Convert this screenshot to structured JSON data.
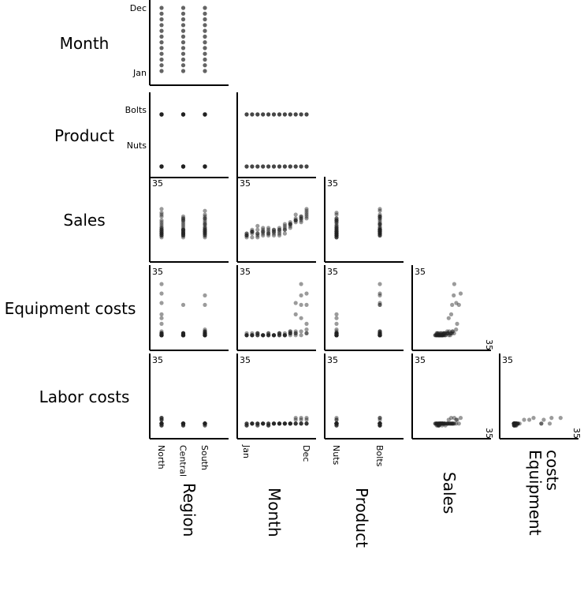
{
  "chart_data": {
    "type": "scatter",
    "kind": "scatter-plot-matrix (lower triangle)",
    "variables": {
      "Region": {
        "label": "Region",
        "type": "categorical",
        "levels": [
          "North",
          "Central",
          "South"
        ]
      },
      "Month": {
        "label": "Month",
        "type": "ordinal",
        "first_label": "Jan",
        "last_label": "Dec",
        "levels": [
          "Jan",
          "Feb",
          "Mar",
          "Apr",
          "May",
          "Jun",
          "Jul",
          "Aug",
          "Sep",
          "Oct",
          "Nov",
          "Dec"
        ]
      },
      "Product": {
        "label": "Product",
        "type": "categorical",
        "levels": [
          "Nuts",
          "Bolts"
        ]
      },
      "Sales": {
        "label": "Sales",
        "type": "numeric",
        "range": [
          0,
          35
        ],
        "max_label": "35"
      },
      "EquipmentCosts": {
        "label": "Equipment costs",
        "type": "numeric",
        "range": [
          0,
          35
        ],
        "max_label": "35"
      },
      "LaborCosts": {
        "label": "Labor costs",
        "type": "numeric",
        "range": [
          0,
          35
        ],
        "max_label": "35"
      }
    },
    "row_order": [
      "Month",
      "Product",
      "Sales",
      "EquipmentCosts",
      "LaborCosts"
    ],
    "column_order": [
      "Region",
      "Month",
      "Product",
      "Sales",
      "EquipmentCosts"
    ],
    "records": [
      [
        "North",
        "Jan",
        "Nuts",
        9,
        3,
        3
      ],
      [
        "North",
        "Jan",
        "Bolts",
        10,
        3,
        2
      ],
      [
        "North",
        "Feb",
        "Nuts",
        11,
        4,
        3
      ],
      [
        "North",
        "Feb",
        "Bolts",
        12,
        3,
        3
      ],
      [
        "North",
        "Mar",
        "Nuts",
        8,
        3,
        3
      ],
      [
        "North",
        "Mar",
        "Bolts",
        14,
        4,
        2
      ],
      [
        "North",
        "Apr",
        "Nuts",
        10,
        3,
        3
      ],
      [
        "North",
        "Apr",
        "Bolts",
        13,
        3,
        3
      ],
      [
        "North",
        "May",
        "Nuts",
        9,
        4,
        2
      ],
      [
        "North",
        "May",
        "Bolts",
        11,
        3,
        3
      ],
      [
        "North",
        "Jun",
        "Nuts",
        12,
        3,
        3
      ],
      [
        "North",
        "Jun",
        "Bolts",
        10,
        3,
        3
      ],
      [
        "North",
        "Jul",
        "Nuts",
        11,
        4,
        3
      ],
      [
        "North",
        "Jul",
        "Bolts",
        9,
        3,
        3
      ],
      [
        "North",
        "Aug",
        "Nuts",
        10,
        3,
        3
      ],
      [
        "North",
        "Aug",
        "Bolts",
        12,
        3,
        3
      ],
      [
        "North",
        "Sep",
        "Nuts",
        13,
        4,
        3
      ],
      [
        "North",
        "Sep",
        "Bolts",
        15,
        5,
        3
      ],
      [
        "North",
        "Oct",
        "Nuts",
        17,
        14,
        6
      ],
      [
        "North",
        "Oct",
        "Bolts",
        20,
        20,
        5
      ],
      [
        "North",
        "Nov",
        "Nuts",
        16,
        12,
        5
      ],
      [
        "North",
        "Nov",
        "Bolts",
        19,
        30,
        6
      ],
      [
        "North",
        "Dec",
        "Nuts",
        21,
        9,
        5
      ],
      [
        "North",
        "Dec",
        "Bolts",
        23,
        25,
        6
      ],
      [
        "Central",
        "Jan",
        "Nuts",
        9,
        3,
        3
      ],
      [
        "Central",
        "Jan",
        "Bolts",
        10,
        3,
        2
      ],
      [
        "Central",
        "Feb",
        "Nuts",
        8,
        3,
        3
      ],
      [
        "Central",
        "Feb",
        "Bolts",
        11,
        3,
        3
      ],
      [
        "Central",
        "Mar",
        "Nuts",
        10,
        4,
        3
      ],
      [
        "Central",
        "Mar",
        "Bolts",
        12,
        3,
        2
      ],
      [
        "Central",
        "Apr",
        "Nuts",
        9,
        3,
        3
      ],
      [
        "Central",
        "Apr",
        "Bolts",
        11,
        3,
        3
      ],
      [
        "Central",
        "May",
        "Nuts",
        10,
        3,
        2
      ],
      [
        "Central",
        "May",
        "Bolts",
        12,
        3,
        3
      ],
      [
        "Central",
        "Jun",
        "Nuts",
        11,
        3,
        3
      ],
      [
        "Central",
        "Jun",
        "Bolts",
        9,
        3,
        3
      ],
      [
        "Central",
        "Jul",
        "Nuts",
        12,
        4,
        3
      ],
      [
        "Central",
        "Jul",
        "Bolts",
        10,
        3,
        3
      ],
      [
        "Central",
        "Aug",
        "Nuts",
        13,
        3,
        3
      ],
      [
        "Central",
        "Aug",
        "Bolts",
        12,
        3,
        3
      ],
      [
        "Central",
        "Sep",
        "Nuts",
        14,
        3,
        3
      ],
      [
        "Central",
        "Sep",
        "Bolts",
        15,
        4,
        3
      ],
      [
        "Central",
        "Oct",
        "Nuts",
        16,
        3,
        3
      ],
      [
        "Central",
        "Oct",
        "Bolts",
        17,
        4,
        3
      ],
      [
        "Central",
        "Nov",
        "Nuts",
        17,
        3,
        3
      ],
      [
        "Central",
        "Nov",
        "Bolts",
        18,
        19,
        3
      ],
      [
        "Central",
        "Dec",
        "Nuts",
        18,
        4,
        3
      ],
      [
        "Central",
        "Dec",
        "Bolts",
        19,
        4,
        3
      ],
      [
        "South",
        "Jan",
        "Nuts",
        8,
        3,
        3
      ],
      [
        "South",
        "Jan",
        "Bolts",
        9,
        4,
        2
      ],
      [
        "South",
        "Feb",
        "Nuts",
        10,
        3,
        3
      ],
      [
        "South",
        "Feb",
        "Bolts",
        11,
        3,
        3
      ],
      [
        "South",
        "Mar",
        "Nuts",
        9,
        4,
        3
      ],
      [
        "South",
        "Mar",
        "Bolts",
        10,
        3,
        3
      ],
      [
        "South",
        "Apr",
        "Nuts",
        11,
        3,
        3
      ],
      [
        "South",
        "Apr",
        "Bolts",
        12,
        3,
        3
      ],
      [
        "South",
        "May",
        "Nuts",
        10,
        3,
        2
      ],
      [
        "South",
        "May",
        "Bolts",
        13,
        4,
        3
      ],
      [
        "South",
        "Jun",
        "Nuts",
        12,
        3,
        3
      ],
      [
        "South",
        "Jun",
        "Bolts",
        11,
        3,
        3
      ],
      [
        "South",
        "Jul",
        "Nuts",
        13,
        4,
        3
      ],
      [
        "South",
        "Jul",
        "Bolts",
        12,
        3,
        3
      ],
      [
        "South",
        "Aug",
        "Nuts",
        14,
        3,
        3
      ],
      [
        "South",
        "Aug",
        "Bolts",
        15,
        4,
        3
      ],
      [
        "South",
        "Sep",
        "Nuts",
        15,
        4,
        3
      ],
      [
        "South",
        "Sep",
        "Bolts",
        16,
        5,
        3
      ],
      [
        "South",
        "Oct",
        "Nuts",
        17,
        4,
        3
      ],
      [
        "South",
        "Oct",
        "Bolts",
        18,
        5,
        3
      ],
      [
        "South",
        "Nov",
        "Nuts",
        18,
        5,
        3
      ],
      [
        "South",
        "Nov",
        "Bolts",
        19,
        24,
        3
      ],
      [
        "South",
        "Dec",
        "Nuts",
        20,
        6,
        3
      ],
      [
        "South",
        "Dec",
        "Bolts",
        22,
        19,
        3
      ]
    ],
    "point_color": "#222222",
    "point_opacity": 0.45,
    "grid": false,
    "legend": "none"
  }
}
